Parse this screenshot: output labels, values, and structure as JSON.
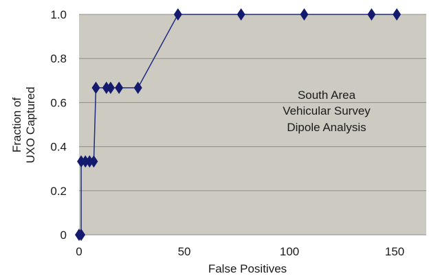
{
  "chart_data": {
    "type": "line",
    "title": "",
    "xlabel": "False Positives",
    "ylabel_lines": [
      "Fraction of",
      "UXO  Captured"
    ],
    "xlim": [
      0,
      165
    ],
    "ylim": [
      0,
      1.0
    ],
    "x_ticks": [
      0,
      50,
      100,
      150
    ],
    "y_ticks": [
      0,
      0.2,
      0.4,
      0.6,
      0.8,
      1.0
    ],
    "x_tick_labels": [
      "0",
      "50",
      "100",
      "150"
    ],
    "y_tick_labels": [
      "0",
      "0.2",
      "0.4",
      "0.6",
      "0.8",
      "1.0"
    ],
    "grid": "horizontal",
    "annotation_lines": [
      "South Area",
      "Vehicular Survey",
      "Dipole Analysis"
    ],
    "series": [
      {
        "x": [
          0,
          1,
          1,
          3,
          5,
          7,
          8,
          13,
          15,
          19,
          28,
          47,
          77,
          107,
          139,
          151
        ],
        "y": [
          0,
          0,
          0.333,
          0.333,
          0.333,
          0.333,
          0.667,
          0.667,
          0.667,
          0.667,
          0.667,
          1.0,
          1.0,
          1.0,
          1.0,
          1.0
        ],
        "marker": "diamond"
      }
    ],
    "colors": {
      "plot_bg": "#cccac1",
      "line": "#1f2a80",
      "marker": "#141b6e",
      "grid": "#8c8c8c"
    }
  }
}
